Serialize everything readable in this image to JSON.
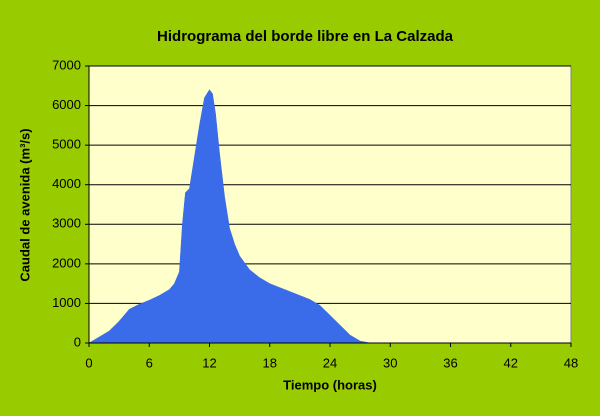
{
  "chart_data": {
    "type": "area",
    "title": "Hidrograma del borde libre en La Calzada",
    "x_label": "Tiempo (horas)",
    "y_label": "Caudal de avenida (m³/s)",
    "x": [
      0,
      1,
      2,
      3,
      4,
      5,
      6,
      7,
      8,
      8.5,
      9,
      9.3,
      9.6,
      10,
      10.5,
      11,
      11.5,
      12,
      12.3,
      12.6,
      13,
      13.5,
      14,
      14.5,
      15,
      16,
      17,
      18,
      19,
      20,
      21,
      22,
      23,
      24,
      25,
      26,
      27,
      28
    ],
    "values": [
      0,
      150,
      300,
      550,
      850,
      980,
      1080,
      1200,
      1350,
      1500,
      1800,
      3000,
      3800,
      3900,
      4700,
      5500,
      6200,
      6400,
      6300,
      5800,
      4800,
      3700,
      2900,
      2500,
      2200,
      1850,
      1650,
      1500,
      1400,
      1300,
      1200,
      1100,
      950,
      700,
      450,
      200,
      50,
      0
    ],
    "color": "#3a6be8",
    "xlim": [
      0,
      48
    ],
    "xticks": [
      0,
      6,
      12,
      18,
      24,
      30,
      36,
      42,
      48
    ],
    "ylim": [
      0,
      7000
    ],
    "yticks": [
      0,
      1000,
      2000,
      3000,
      4000,
      5000,
      6000,
      7000
    ],
    "grid": true
  }
}
